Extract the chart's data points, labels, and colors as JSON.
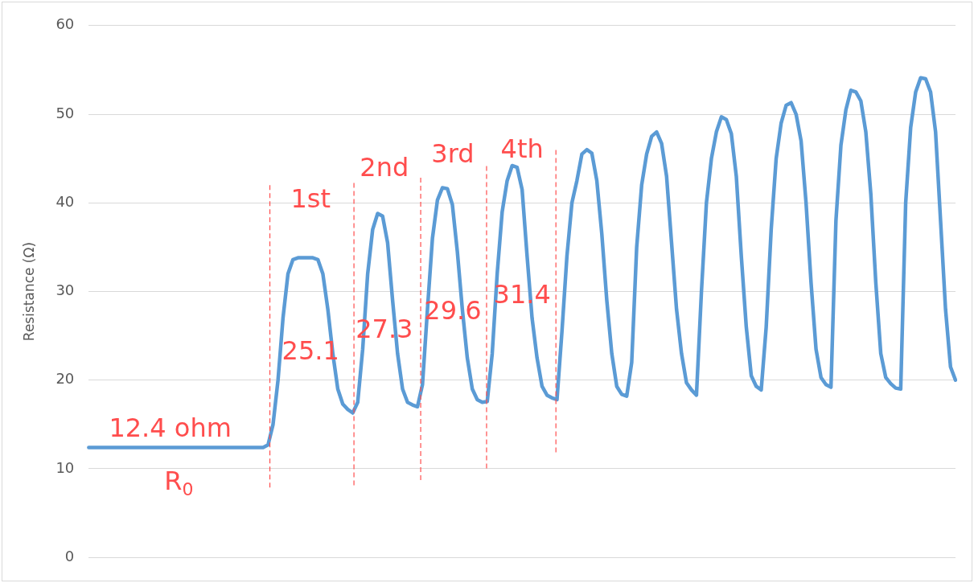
{
  "chart_data": {
    "type": "line",
    "ylabel": "Resistance (Ω)",
    "categories": [
      null,
      null,
      null,
      null,
      null,
      null,
      null,
      null,
      null,
      null,
      null,
      null,
      null,
      null,
      null,
      null,
      null,
      null,
      null,
      null,
      null,
      null,
      null,
      null,
      null,
      null,
      null,
      null,
      null,
      null,
      null,
      null,
      null,
      null,
      null,
      null,
      null,
      null,
      null,
      null,
      null,
      null,
      null,
      null,
      null,
      null,
      null,
      null,
      null,
      null,
      null,
      null,
      null,
      null,
      null,
      null,
      null,
      null,
      null,
      null,
      null,
      null,
      null,
      null,
      null,
      null,
      null,
      null,
      null,
      null,
      null,
      null,
      null,
      null,
      null,
      null,
      null,
      null,
      null,
      null,
      null,
      null,
      null,
      null,
      null,
      null,
      null,
      null,
      null,
      null,
      null,
      null,
      null,
      null,
      null,
      null,
      null,
      null,
      null,
      null,
      null,
      null,
      null,
      null,
      null,
      null,
      null,
      null,
      null,
      null,
      null,
      null,
      null,
      null,
      null,
      null,
      null,
      null,
      null,
      null,
      null,
      null,
      null,
      null,
      null,
      null,
      null,
      null,
      null,
      null,
      null,
      null,
      null,
      null,
      null,
      null,
      null,
      null,
      null,
      null,
      null,
      null,
      null,
      null,
      null,
      null,
      null,
      null,
      null,
      null,
      null,
      null,
      null,
      null,
      null,
      null,
      null,
      null,
      null,
      null,
      null,
      null,
      null,
      null,
      null,
      null,
      null,
      null,
      null,
      null,
      null,
      null,
      null,
      null,
      null
    ],
    "series": [
      {
        "color": "#5b9bd5",
        "values": [
          12.4,
          12.4,
          12.4,
          12.4,
          12.4,
          12.4,
          12.4,
          12.4,
          12.4,
          12.4,
          12.4,
          12.4,
          12.4,
          12.4,
          12.4,
          12.4,
          12.4,
          12.4,
          12.4,
          12.4,
          12.4,
          12.4,
          12.4,
          12.4,
          12.4,
          12.4,
          12.4,
          12.4,
          12.4,
          12.4,
          12.4,
          12.4,
          12.4,
          12.4,
          12.4,
          12.4,
          12.7,
          15,
          20,
          27,
          32,
          33.6,
          33.8,
          33.8,
          33.8,
          33.8,
          33.6,
          32,
          28,
          23,
          19,
          17.3,
          16.7,
          16.3,
          17.5,
          23.5,
          32,
          37,
          38.8,
          38.5,
          35.5,
          29,
          23,
          19,
          17.5,
          17.2,
          17,
          19.5,
          28,
          36,
          40.3,
          41.7,
          41.6,
          39.8,
          34.5,
          28,
          22.5,
          19,
          17.8,
          17.5,
          17.6,
          23,
          32,
          39,
          42.5,
          44.2,
          44,
          41.5,
          34,
          27,
          22.5,
          19.3,
          18.3,
          18,
          17.8,
          25.5,
          34,
          40,
          42.5,
          45.5,
          46,
          45.6,
          42.5,
          36.5,
          29,
          23,
          19.3,
          18.4,
          18.2,
          22,
          35,
          42,
          45.5,
          47.5,
          48,
          46.7,
          43,
          35.5,
          28,
          23,
          19.7,
          18.9,
          18.3,
          30,
          40,
          45,
          48,
          49.7,
          49.4,
          47.8,
          43,
          34,
          26,
          20.5,
          19.3,
          18.9,
          26,
          37,
          45,
          49,
          51,
          51.3,
          50,
          47,
          40,
          31,
          23.5,
          20.3,
          19.5,
          19.2,
          38,
          46.5,
          50.5,
          52.7,
          52.5,
          51.5,
          48,
          41,
          31,
          23,
          20.3,
          19.6,
          19.1,
          19,
          40,
          48.5,
          52.5,
          54.1,
          54,
          52.5,
          48,
          38,
          28,
          21.5,
          20
        ]
      }
    ],
    "ylim": [
      0,
      60
    ],
    "yticks": [
      0,
      10,
      20,
      30,
      40,
      50,
      60
    ],
    "grid": "y",
    "tick_labels": "y",
    "line_style": "solid",
    "annotations": [
      "12.4 ohm",
      "R$_{0}$",
      "1st",
      "2nd",
      "3rd",
      "4th",
      "25.1",
      "27.3",
      "29.6",
      "31.4"
    ]
  }
}
